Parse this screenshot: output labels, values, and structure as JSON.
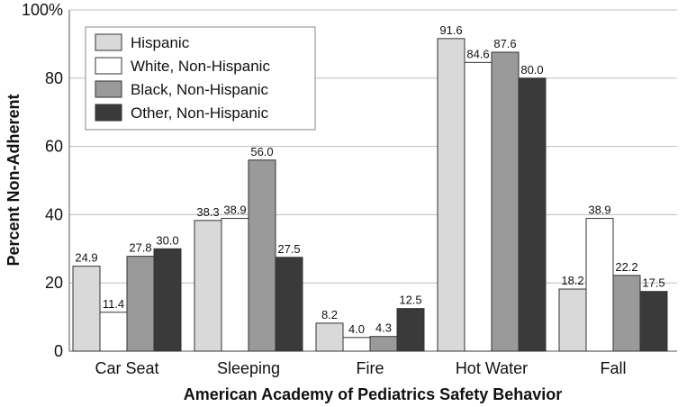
{
  "chart_data": {
    "type": "bar",
    "title": "",
    "xlabel": "American Academy of Pediatrics Safety Behavior",
    "ylabel": "Percent Non-Adherent",
    "ylim": [
      0,
      100
    ],
    "yticks": [
      "0",
      "20",
      "40",
      "60",
      "80",
      "100%"
    ],
    "grid": true,
    "legend_position": "top-left",
    "categories": [
      "Car Seat",
      "Sleeping",
      "Fire",
      "Hot Water",
      "Fall"
    ],
    "series": [
      {
        "name": "Hispanic",
        "color": "#d9d9d9",
        "values": [
          24.9,
          38.3,
          8.2,
          91.6,
          18.2
        ],
        "labels": [
          "24.9",
          "38.3",
          "8.2",
          "91.6",
          "18.2"
        ]
      },
      {
        "name": "White, Non-Hispanic",
        "color": "#ffffff",
        "values": [
          11.4,
          38.9,
          4.0,
          84.6,
          38.9
        ],
        "labels": [
          "11.4",
          "38.9",
          "4.0",
          "84.6",
          "38.9"
        ]
      },
      {
        "name": "Black, Non-Hispanic",
        "color": "#9a9a9a",
        "values": [
          27.8,
          56.0,
          4.3,
          87.6,
          22.2
        ],
        "labels": [
          "27.8",
          "56.0",
          "4.3",
          "87.6",
          "22.2"
        ]
      },
      {
        "name": "Other, Non-Hispanic",
        "color": "#3a3a3a",
        "values": [
          30.0,
          27.5,
          12.5,
          80.0,
          17.5
        ],
        "labels": [
          "30.0",
          "27.5",
          "12.5",
          "80.0",
          "17.5"
        ]
      }
    ]
  }
}
